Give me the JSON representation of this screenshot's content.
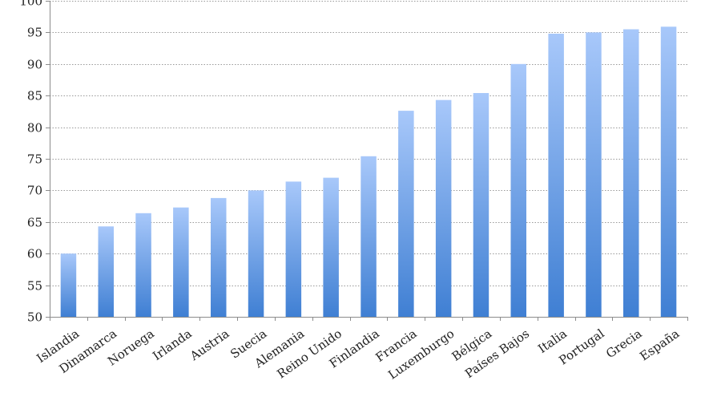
{
  "chart_data": {
    "type": "bar",
    "title": "",
    "xlabel": "",
    "ylabel": "",
    "ylim": [
      50,
      100
    ],
    "yticks": [
      50,
      55,
      60,
      65,
      70,
      75,
      80,
      85,
      90,
      95,
      100
    ],
    "grid": true,
    "legend": "none",
    "bar_color_top": "#a8c8fa",
    "bar_color_bottom": "#3f7fd3",
    "categories": [
      "Islandia",
      "Dinamarca",
      "Noruega",
      "Irlanda",
      "Austria",
      "Suecia",
      "Alemania",
      "Reino Unido",
      "Finlandia",
      "Francia",
      "Luxemburgo",
      "Bélgica",
      "Países Bajos",
      "Italia",
      "Portugal",
      "Grecia",
      "España"
    ],
    "values": [
      60,
      64.3,
      66.4,
      67.3,
      68.8,
      70,
      71.4,
      72,
      75.4,
      82.6,
      84.3,
      85.4,
      90,
      94.8,
      95,
      95.5,
      95.9
    ]
  }
}
